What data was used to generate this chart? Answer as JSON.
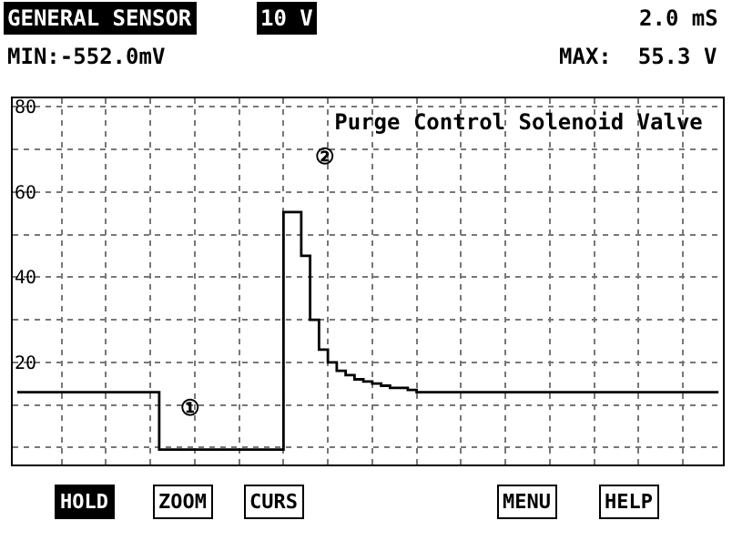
{
  "chart_data": {
    "type": "step",
    "title": "Purge Control Solenoid Valve",
    "categories": [
      null,
      null,
      null,
      null,
      null,
      null,
      null,
      null,
      null,
      null,
      null,
      null,
      null,
      null,
      null,
      null,
      null,
      null,
      null,
      null,
      null,
      null,
      null,
      null,
      null,
      null,
      null,
      null,
      null,
      null,
      null,
      null,
      null,
      null,
      null,
      null,
      null,
      null,
      null,
      null,
      null,
      null,
      null,
      null,
      null,
      null,
      null,
      null,
      null,
      null,
      null,
      null,
      null,
      null,
      null,
      null,
      null,
      null,
      null,
      null,
      null,
      null,
      null,
      null,
      null,
      null,
      null,
      null,
      null,
      null,
      null,
      null,
      null,
      null,
      null,
      null,
      null,
      null,
      null,
      null
    ],
    "series": [
      {
        "color": "#000000",
        "values": [
          13,
          13,
          13,
          13,
          13,
          13,
          13,
          13,
          13,
          13,
          13,
          13,
          13,
          13,
          13,
          13,
          -0.5,
          -0.5,
          -0.5,
          -0.5,
          -0.5,
          -0.5,
          -0.5,
          -0.5,
          -0.5,
          -0.5,
          -0.5,
          -0.5,
          -0.5,
          -0.5,
          55.3,
          55.3,
          45,
          30,
          23,
          20,
          18,
          17,
          16,
          15.5,
          15,
          14.5,
          14,
          14,
          13.5,
          13,
          13,
          13,
          13,
          13,
          13,
          13,
          13,
          13,
          13,
          13,
          13,
          13,
          13,
          13,
          13,
          13,
          13,
          13,
          13,
          13,
          13,
          13,
          13,
          13,
          13,
          13,
          13,
          13,
          13,
          13,
          13,
          13,
          13,
          13
        ]
      }
    ],
    "ylim": [
      -4,
      82
    ],
    "yticks": [
      {
        "value": 0,
        "label": null
      },
      {
        "value": 10,
        "label": null
      },
      20,
      {
        "value": 30,
        "label": null
      },
      40,
      {
        "value": 50,
        "label": null
      },
      60,
      {
        "value": 70,
        "label": null
      },
      80
    ],
    "grid": true,
    "marker": "none",
    "line_style": "solid",
    "annotations": [
      "GENERAL SENSOR",
      "10 V",
      "2.0 mS",
      "MIN:-552.0mV",
      "MAX:  55.3 V",
      "①",
      "②",
      "HOLD",
      "ZOOM",
      "CURS",
      "MENU",
      "HELP"
    ]
  }
}
